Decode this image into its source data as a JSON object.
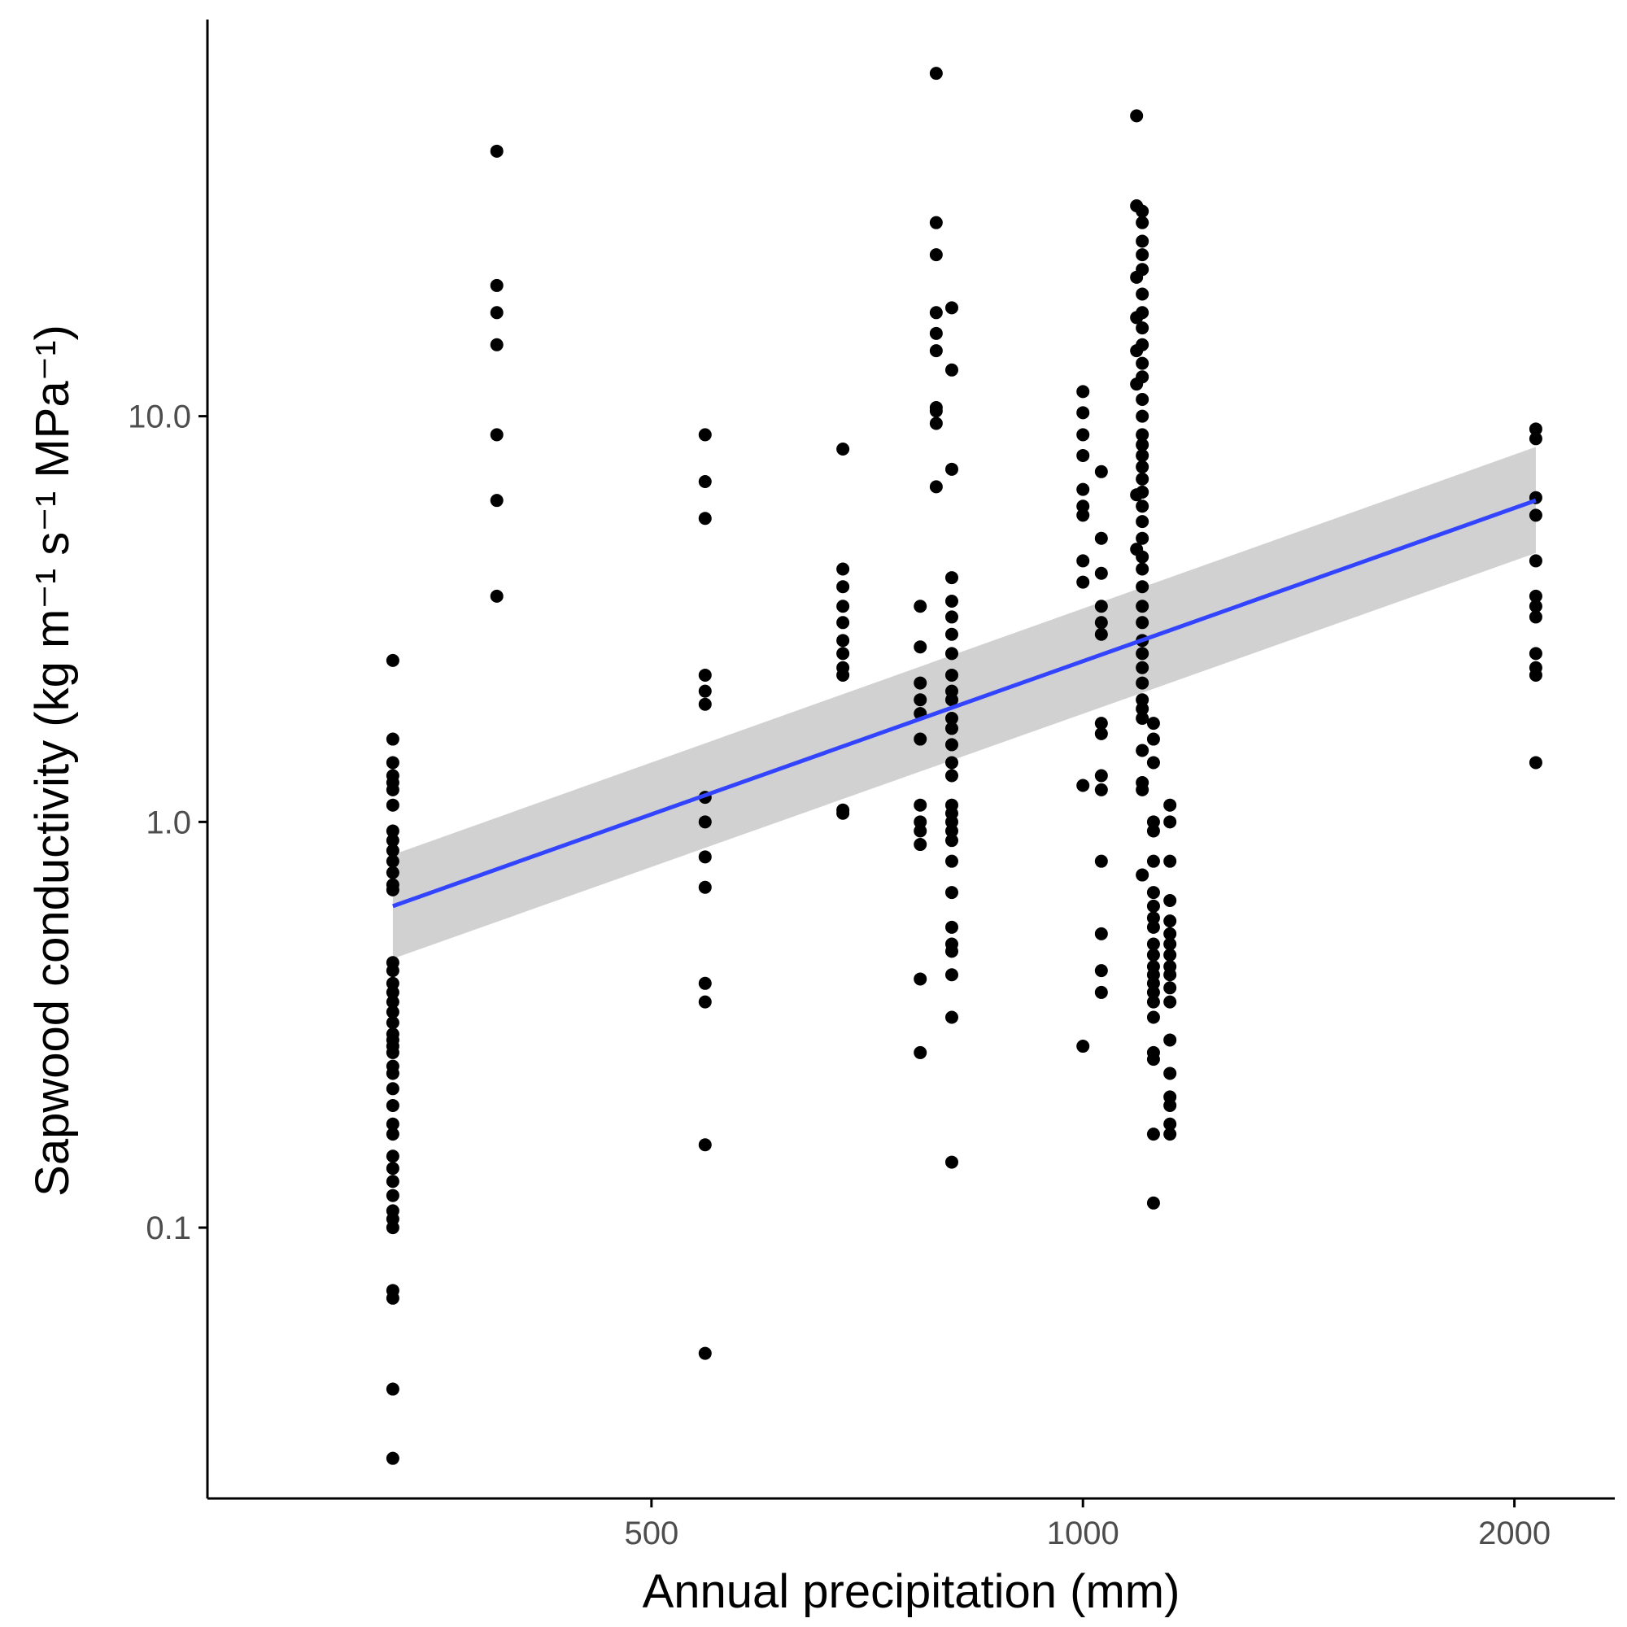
{
  "chart_data": {
    "type": "scatter",
    "title": "",
    "xlabel": "Annual precipitation (mm)",
    "ylabel": "Sapwood conductivity (kg m⁻¹ s⁻¹ MPa⁻¹)",
    "x_scale": "log",
    "y_scale": "log",
    "xlim": [
      245,
      2350
    ],
    "ylim": [
      0.0215,
      95
    ],
    "x_ticks": [
      500,
      1000,
      2000
    ],
    "x_tick_labels": [
      "500",
      "1000",
      "2000"
    ],
    "y_ticks": [
      0.1,
      1.0,
      10.0
    ],
    "y_tick_labels": [
      "0.1",
      "1.0",
      "10.0"
    ],
    "grid": false,
    "legend": "none",
    "colors": {
      "points": "#000000",
      "fit_line": "#3344ff",
      "confidence_band": "#cccccc"
    },
    "fit": {
      "x": [
        330,
        2070
      ],
      "y": [
        0.62,
        6.2
      ],
      "ci_low": [
        0.46,
        4.6
      ],
      "ci_high": [
        0.83,
        8.4
      ]
    },
    "points": [
      {
        "x": 330,
        "y": [
          2.5,
          1.6,
          1.4,
          1.3,
          1.25,
          1.2,
          1.1,
          0.95,
          0.9,
          0.85,
          0.8,
          0.75,
          0.7,
          0.68,
          0.45,
          0.43,
          0.4,
          0.38,
          0.36,
          0.34,
          0.32,
          0.3,
          0.29,
          0.28,
          0.27,
          0.25,
          0.24,
          0.22,
          0.2,
          0.18,
          0.17,
          0.15,
          0.14,
          0.13,
          0.12,
          0.11,
          0.105,
          0.1,
          0.07,
          0.067,
          0.04,
          0.027
        ]
      },
      {
        "x": 390,
        "y": [
          45,
          21,
          18,
          15,
          9,
          6.2,
          3.6
        ]
      },
      {
        "x": 545,
        "y": [
          9,
          6.9,
          5.6,
          2.3,
          2.1,
          1.95,
          1.15,
          1.0,
          0.82,
          0.69,
          0.4,
          0.36,
          0.16,
          0.049
        ]
      },
      {
        "x": 680,
        "y": [
          8.3,
          4.2,
          3.8,
          3.4,
          3.1,
          2.8,
          2.6,
          2.4,
          2.3,
          1.07,
          1.05
        ]
      },
      {
        "x": 770,
        "y": [
          3.4,
          2.7,
          2.2,
          2.0,
          1.85,
          1.6,
          1.1,
          1.0,
          0.95,
          0.88,
          0.41,
          0.27
        ]
      },
      {
        "x": 790,
        "y": [
          70,
          30,
          25,
          18,
          16,
          14.5,
          10.5,
          10.3,
          9.6,
          6.7
        ]
      },
      {
        "x": 810,
        "y": [
          18.5,
          13,
          7.4,
          4.0,
          3.5,
          3.2,
          2.9,
          2.6,
          2.3,
          2.1,
          2.0,
          1.8,
          1.7,
          1.55,
          1.4,
          1.3,
          1.1,
          1.05,
          1.0,
          0.95,
          0.9,
          0.8,
          0.67,
          0.55,
          0.5,
          0.48,
          0.42,
          0.33,
          0.145
        ]
      },
      {
        "x": 1000,
        "y": [
          11.5,
          10.2,
          9.0,
          8.0,
          6.6,
          6.0,
          5.7,
          4.4,
          3.9,
          1.23,
          0.28
        ]
      },
      {
        "x": 1030,
        "y": [
          7.3,
          5.0,
          4.1,
          3.4,
          3.1,
          2.9,
          1.75,
          1.65,
          1.3,
          1.2,
          0.8,
          0.53,
          0.43,
          0.38
        ]
      },
      {
        "x": 1090,
        "y": [
          55,
          33,
          22,
          17.5,
          14.5,
          12,
          6.4,
          4.7
        ]
      },
      {
        "x": 1100,
        "y": [
          32,
          30,
          27,
          25,
          23,
          20,
          18,
          16.5,
          15,
          13.5,
          12.5,
          11,
          10,
          9,
          8.5,
          8,
          7.5,
          7,
          6.5,
          6,
          5.5,
          5,
          4.5,
          4.2,
          3.8,
          3.4,
          3.1,
          2.8,
          2.6,
          2.4,
          2.2,
          2.0,
          1.9,
          1.8,
          1.5,
          1.25,
          1.2,
          0.74
        ]
      },
      {
        "x": 1120,
        "y": [
          1.75,
          1.6,
          1.4,
          1.0,
          0.95,
          0.8,
          0.67,
          0.62,
          0.58,
          0.55,
          0.5,
          0.47,
          0.44,
          0.42,
          0.4,
          0.38,
          0.36,
          0.33,
          0.27,
          0.26,
          0.17,
          0.115
        ]
      },
      {
        "x": 1150,
        "y": [
          1.1,
          1.0,
          0.8,
          0.64,
          0.57,
          0.53,
          0.5,
          0.47,
          0.44,
          0.42,
          0.39,
          0.36,
          0.29,
          0.24,
          0.21,
          0.2,
          0.18,
          0.17
        ]
      },
      {
        "x": 2070,
        "y": [
          9.3,
          8.8,
          6.3,
          5.7,
          4.4,
          3.6,
          3.4,
          3.2,
          2.6,
          2.4,
          2.3,
          1.4
        ]
      }
    ]
  }
}
